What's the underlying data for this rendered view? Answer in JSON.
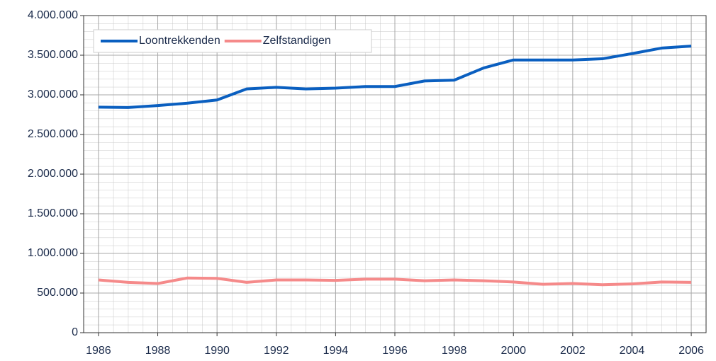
{
  "chart_data": {
    "type": "line",
    "x": [
      1986,
      1987,
      1988,
      1989,
      1990,
      1991,
      1992,
      1993,
      1994,
      1995,
      1996,
      1997,
      1998,
      1999,
      2000,
      2001,
      2002,
      2003,
      2004,
      2005,
      2006
    ],
    "series": [
      {
        "name": "Loontrekkenden",
        "color": "#0a5fc0",
        "values": [
          2845000,
          2840000,
          2865000,
          2895000,
          2935000,
          3075000,
          3095000,
          3075000,
          3085000,
          3105000,
          3105000,
          3175000,
          3185000,
          3340000,
          3440000,
          3440000,
          3440000,
          3455000,
          3520000,
          3590000,
          3615000
        ]
      },
      {
        "name": "Zelfstandigen",
        "color": "#f58a8a",
        "values": [
          665000,
          635000,
          620000,
          690000,
          685000,
          635000,
          665000,
          665000,
          660000,
          675000,
          675000,
          655000,
          665000,
          655000,
          640000,
          610000,
          620000,
          605000,
          615000,
          640000,
          635000
        ]
      }
    ],
    "xlim": [
      1985.5,
      2006.5
    ],
    "xticks": [
      1986,
      1988,
      1990,
      1992,
      1994,
      1996,
      1998,
      2000,
      2002,
      2004,
      2006
    ],
    "ylim": [
      0,
      4000000
    ],
    "yticks": [
      0,
      {
        "value": 500000,
        "label": "500.000"
      },
      {
        "value": 1000000,
        "label": "1.000.000"
      },
      {
        "value": 1500000,
        "label": "1.500.000"
      },
      {
        "value": 2000000,
        "label": "2.000.000"
      },
      {
        "value": 2500000,
        "label": "2.500.000"
      },
      {
        "value": 3000000,
        "label": "3.000.000"
      },
      {
        "value": 3500000,
        "label": "3.500.000"
      },
      {
        "value": 4000000,
        "label": "4.000.000"
      }
    ],
    "grid": true,
    "legend": "top-left"
  }
}
